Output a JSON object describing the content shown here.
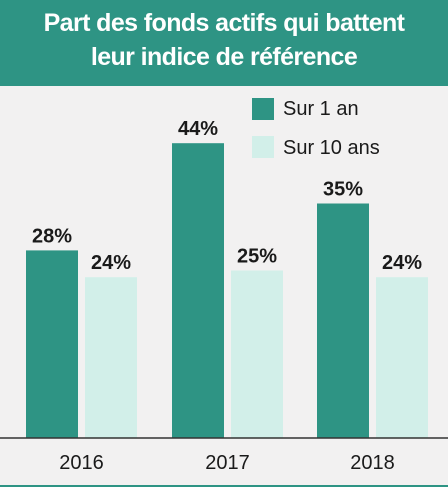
{
  "chart_data": {
    "type": "bar",
    "title": [
      "Part des fonds actifs qui battent",
      "leur indice de référence"
    ],
    "categories": [
      "2016",
      "2017",
      "2018"
    ],
    "series": [
      {
        "name": "Sur 1 an",
        "values": [
          28,
          44,
          35
        ],
        "color": "#2e9484"
      },
      {
        "name": "Sur 10 ans",
        "values": [
          24,
          25,
          24
        ],
        "color": "#d2efe9"
      }
    ],
    "value_suffix": "%",
    "legend_position": "top-right",
    "grid": false
  }
}
